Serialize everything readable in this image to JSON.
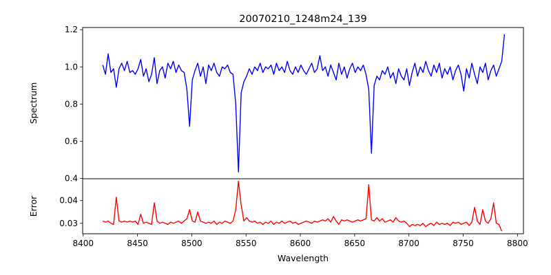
{
  "chart_data": {
    "type": "line",
    "title": "20070210_1248m24_139",
    "xlabel": "Wavelength",
    "xlim": [
      8399.5,
      8805.5
    ],
    "xticks": [
      8400,
      8450,
      8500,
      8550,
      8600,
      8650,
      8700,
      8750,
      8800
    ],
    "x_start": 8418,
    "x_step": 2.5,
    "panels": [
      {
        "name": "spectrum",
        "ylabel": "Spectrum",
        "ylim": [
          0.398,
          1.212
        ],
        "yticks": [
          0.4,
          0.6,
          0.8,
          1.0,
          1.2
        ],
        "ytick_labels": [
          "0.4",
          "0.6",
          "0.8",
          "1.0",
          "1.2"
        ],
        "color": "#0000ff",
        "values": [
          1.01,
          0.96,
          1.07,
          0.97,
          0.99,
          0.89,
          0.99,
          1.02,
          0.98,
          1.03,
          0.97,
          0.98,
          0.96,
          0.99,
          1.04,
          0.95,
          0.99,
          0.92,
          0.96,
          1.05,
          0.91,
          0.98,
          1.0,
          0.94,
          1.02,
          0.99,
          1.03,
          0.97,
          1.01,
          0.98,
          0.97,
          0.88,
          0.68,
          0.93,
          0.98,
          1.02,
          0.95,
          1.0,
          0.91,
          1.01,
          0.98,
          1.02,
          0.97,
          0.95,
          1.0,
          0.99,
          1.01,
          0.97,
          0.96,
          0.8,
          0.435,
          0.86,
          0.92,
          0.95,
          0.99,
          0.96,
          1.0,
          0.98,
          1.02,
          0.97,
          1.0,
          0.99,
          1.01,
          0.96,
          1.02,
          0.98,
          1.0,
          0.97,
          1.03,
          0.98,
          0.96,
          1.0,
          0.97,
          1.01,
          0.98,
          0.96,
          0.99,
          1.02,
          0.97,
          0.99,
          1.06,
          0.98,
          1.0,
          0.95,
          1.01,
          0.97,
          0.93,
          1.02,
          0.96,
          1.0,
          0.94,
          0.99,
          1.02,
          0.97,
          1.0,
          0.98,
          1.01,
          0.96,
          0.88,
          0.535,
          0.9,
          0.95,
          0.93,
          0.98,
          0.96,
          1.0,
          0.94,
          0.97,
          0.91,
          0.99,
          0.95,
          0.93,
          0.99,
          0.9,
          0.97,
          1.02,
          0.95,
          1.0,
          0.97,
          1.03,
          0.98,
          0.95,
          1.01,
          0.97,
          1.02,
          0.94,
          0.99,
          0.96,
          1.0,
          0.93,
          0.98,
          1.01,
          0.96,
          0.87,
          0.99,
          0.94,
          1.02,
          0.96,
          0.91,
          1.0,
          0.97,
          1.02,
          0.93,
          0.98,
          1.01,
          0.95,
          0.99,
          1.03,
          1.175
        ]
      },
      {
        "name": "error",
        "ylabel": "Error",
        "ylim": [
          0.0254,
          0.0496
        ],
        "yticks": [
          0.03,
          0.04
        ],
        "ytick_labels": [
          "0.03",
          "0.04"
        ],
        "color": "#ff0000",
        "values": [
          0.031,
          0.0305,
          0.031,
          0.03,
          0.0295,
          0.0415,
          0.031,
          0.0305,
          0.031,
          0.0305,
          0.031,
          0.0305,
          0.031,
          0.0295,
          0.034,
          0.03,
          0.0305,
          0.03,
          0.0295,
          0.039,
          0.031,
          0.03,
          0.0305,
          0.03,
          0.0295,
          0.0305,
          0.03,
          0.0305,
          0.031,
          0.03,
          0.031,
          0.032,
          0.036,
          0.031,
          0.0305,
          0.035,
          0.031,
          0.0305,
          0.03,
          0.0305,
          0.03,
          0.031,
          0.0295,
          0.0305,
          0.03,
          0.031,
          0.0305,
          0.03,
          0.031,
          0.036,
          0.0485,
          0.038,
          0.031,
          0.0325,
          0.031,
          0.0305,
          0.031,
          0.03,
          0.0305,
          0.0295,
          0.0305,
          0.03,
          0.031,
          0.0295,
          0.0305,
          0.03,
          0.031,
          0.03,
          0.0305,
          0.031,
          0.03,
          0.0305,
          0.0295,
          0.03,
          0.0305,
          0.031,
          0.0305,
          0.03,
          0.031,
          0.0305,
          0.031,
          0.0315,
          0.031,
          0.032,
          0.0305,
          0.033,
          0.031,
          0.0295,
          0.0315,
          0.031,
          0.0315,
          0.031,
          0.0305,
          0.031,
          0.0315,
          0.031,
          0.0315,
          0.032,
          0.047,
          0.0315,
          0.031,
          0.0325,
          0.031,
          0.032,
          0.0305,
          0.031,
          0.0315,
          0.0305,
          0.0325,
          0.031,
          0.0305,
          0.031,
          0.03,
          0.0285,
          0.0295,
          0.029,
          0.0295,
          0.029,
          0.03,
          0.0285,
          0.0295,
          0.03,
          0.029,
          0.0305,
          0.0295,
          0.03,
          0.0295,
          0.03,
          0.029,
          0.0305,
          0.03,
          0.0305,
          0.0295,
          0.03,
          0.0305,
          0.029,
          0.0305,
          0.037,
          0.031,
          0.0295,
          0.036,
          0.031,
          0.03,
          0.032,
          0.039,
          0.03,
          0.0295,
          0.0265
        ]
      }
    ]
  }
}
